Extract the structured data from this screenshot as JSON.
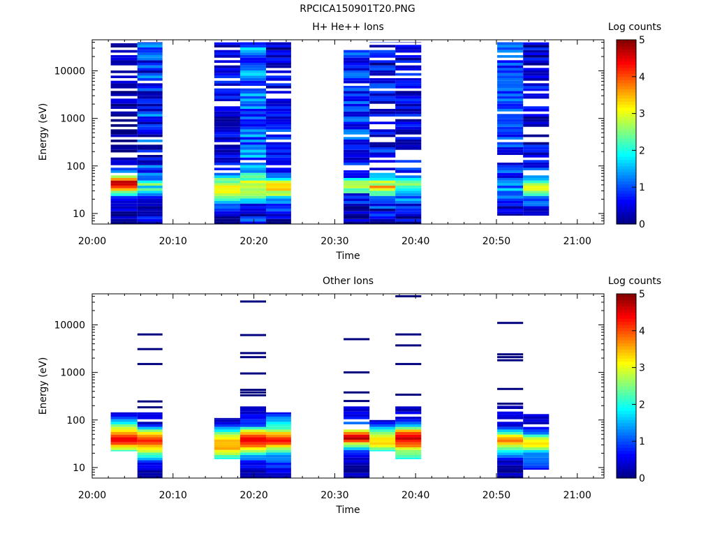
{
  "page_title": "RPCICA150901T20.PNG",
  "colors": {
    "colormap": [
      "#00007f",
      "#0000ff",
      "#007fff",
      "#00ffff",
      "#7fff7f",
      "#ffff00",
      "#ff7f00",
      "#ff0000",
      "#7f0000"
    ]
  },
  "chart_data": [
    {
      "type": "heatmap",
      "title": "H+ He++ Ions",
      "xlabel": "Time",
      "ylabel": "Energy (eV)",
      "x_ticks": [
        "20:00",
        "20:10",
        "20:20",
        "20:30",
        "20:40",
        "20:50",
        "21:00"
      ],
      "x_tick_minutes": [
        0,
        10,
        20,
        30,
        40,
        50,
        60
      ],
      "xlim_minutes": [
        0,
        63.3
      ],
      "y_scale": "log",
      "ylim": [
        6,
        45000
      ],
      "y_ticks": [
        10,
        100,
        1000,
        10000
      ],
      "y_tick_labels": [
        "10",
        "100",
        "1000",
        "10000"
      ],
      "colorbar": {
        "label": "Log counts",
        "range": [
          0,
          5
        ],
        "ticks": [
          "0",
          "1",
          "2",
          "3",
          "4",
          "5"
        ]
      },
      "columns": [
        {
          "t_start": 2.3,
          "t_end": 5.6,
          "e_min": 6,
          "e_max": 38000,
          "profile": [
            [
              6,
              0.2
            ],
            [
              20,
              0.5
            ],
            [
              28,
              2.5
            ],
            [
              36,
              4.2
            ],
            [
              45,
              4.5
            ],
            [
              55,
              3.5
            ],
            [
              70,
              2.0
            ],
            [
              90,
              0.5
            ],
            [
              300,
              0.2
            ],
            [
              40000,
              0.2
            ]
          ],
          "noise": 0.35,
          "gap": 0.35,
          "seed": 11
        },
        {
          "t_start": 5.6,
          "t_end": 8.7,
          "e_min": 6,
          "e_max": 40000,
          "profile": [
            [
              6,
              0.5
            ],
            [
              25,
              0.8
            ],
            [
              32,
              2.0
            ],
            [
              40,
              2.2
            ],
            [
              55,
              1.5
            ],
            [
              100,
              0.7
            ],
            [
              40000,
              0.9
            ]
          ],
          "noise": 0.7,
          "gap": 0.1,
          "seed": 23
        },
        {
          "t_start": 15.1,
          "t_end": 18.3,
          "e_min": 6,
          "e_max": 40000,
          "profile": [
            [
              6,
              0.2
            ],
            [
              15,
              1.0
            ],
            [
              22,
              2.8
            ],
            [
              30,
              3.4
            ],
            [
              40,
              3.2
            ],
            [
              55,
              2.2
            ],
            [
              70,
              1.2
            ],
            [
              120,
              0.5
            ],
            [
              40000,
              0.5
            ]
          ],
          "noise": 0.45,
          "gap": 0.22,
          "seed": 37
        },
        {
          "t_start": 18.3,
          "t_end": 21.5,
          "e_min": 6,
          "e_max": 40000,
          "profile": [
            [
              6,
              0.8
            ],
            [
              15,
              0.5
            ],
            [
              22,
              2.0
            ],
            [
              30,
              2.5
            ],
            [
              42,
              2.8
            ],
            [
              55,
              2.3
            ],
            [
              80,
              1.4
            ],
            [
              200,
              1.1
            ],
            [
              40000,
              1.2
            ]
          ],
          "noise": 0.6,
          "gap": 0.05,
          "seed": 41
        },
        {
          "t_start": 21.5,
          "t_end": 24.6,
          "e_min": 6,
          "e_max": 40000,
          "profile": [
            [
              6,
              0.2
            ],
            [
              18,
              1.2
            ],
            [
              26,
              2.6
            ],
            [
              34,
              3.4
            ],
            [
              44,
              3.3
            ],
            [
              55,
              2.0
            ],
            [
              70,
              0.9
            ],
            [
              40000,
              0.4
            ]
          ],
          "noise": 0.45,
          "gap": 0.18,
          "seed": 53
        },
        {
          "t_start": 31.1,
          "t_end": 34.3,
          "e_min": 6,
          "e_max": 40000,
          "profile": [
            [
              6,
              0.3
            ],
            [
              25,
              0.6
            ],
            [
              30,
              2.6
            ],
            [
              38,
              2.6
            ],
            [
              50,
              2.1
            ],
            [
              60,
              1.0
            ],
            [
              100,
              0.8
            ],
            [
              40000,
              0.8
            ]
          ],
          "noise": 0.55,
          "gap": 0.12,
          "seed": 67
        },
        {
          "t_start": 34.3,
          "t_end": 37.5,
          "e_min": 6,
          "e_max": 40000,
          "profile": [
            [
              6,
              0.2
            ],
            [
              22,
              1.0
            ],
            [
              30,
              2.8
            ],
            [
              38,
              3.3
            ],
            [
              48,
              2.5
            ],
            [
              58,
              1.8
            ],
            [
              80,
              0.6
            ],
            [
              40000,
              0.6
            ]
          ],
          "noise": 0.6,
          "gap": 0.25,
          "seed": 71
        },
        {
          "t_start": 37.5,
          "t_end": 40.7,
          "e_min": 6,
          "e_max": 40000,
          "profile": [
            [
              6,
              0.2
            ],
            [
              18,
              0.9
            ],
            [
              28,
              1.8
            ],
            [
              38,
              2.3
            ],
            [
              48,
              2.4
            ],
            [
              60,
              1.4
            ],
            [
              90,
              0.6
            ],
            [
              40000,
              0.6
            ]
          ],
          "noise": 0.55,
          "gap": 0.2,
          "seed": 79
        },
        {
          "t_start": 50.1,
          "t_end": 53.3,
          "e_min": 9,
          "e_max": 40000,
          "profile": [
            [
              9,
              0.3
            ],
            [
              20,
              0.7
            ],
            [
              30,
              1.4
            ],
            [
              40,
              1.3
            ],
            [
              60,
              0.8
            ],
            [
              300,
              0.9
            ],
            [
              40000,
              0.9
            ]
          ],
          "noise": 0.5,
          "gap": 0.1,
          "seed": 83
        },
        {
          "t_start": 53.3,
          "t_end": 56.5,
          "e_min": 9,
          "e_max": 40000,
          "profile": [
            [
              9,
              0.6
            ],
            [
              20,
              1.0
            ],
            [
              27,
              2.5
            ],
            [
              35,
              3.2
            ],
            [
              45,
              2.6
            ],
            [
              60,
              1.5
            ],
            [
              120,
              0.5
            ],
            [
              40000,
              0.4
            ]
          ],
          "noise": 0.5,
          "gap": 0.22,
          "seed": 97
        }
      ]
    },
    {
      "type": "heatmap",
      "title": "Other Ions",
      "xlabel": "Time",
      "ylabel": "Energy (eV)",
      "x_ticks": [
        "20:00",
        "20:10",
        "20:20",
        "20:30",
        "20:40",
        "20:50",
        "21:00"
      ],
      "x_tick_minutes": [
        0,
        10,
        20,
        30,
        40,
        50,
        60
      ],
      "xlim_minutes": [
        0,
        63.3
      ],
      "y_scale": "log",
      "ylim": [
        6,
        45000
      ],
      "y_ticks": [
        10,
        100,
        1000,
        10000
      ],
      "y_tick_labels": [
        "10",
        "100",
        "1000",
        "10000"
      ],
      "colorbar": {
        "label": "Log counts",
        "range": [
          0,
          5
        ],
        "ticks": [
          "0",
          "1",
          "2",
          "3",
          "4",
          "5"
        ]
      },
      "columns": [
        {
          "t_start": 2.3,
          "t_end": 5.6,
          "e_min": 22,
          "e_max": 145,
          "profile": [
            [
              22,
              2.2
            ],
            [
              28,
              3.2
            ],
            [
              34,
              4.2
            ],
            [
              42,
              4.4
            ],
            [
              52,
              3.8
            ],
            [
              65,
              3.0
            ],
            [
              80,
              2.4
            ],
            [
              100,
              1.2
            ],
            [
              145,
              0.3
            ]
          ],
          "noise": 0.2,
          "gap": 0.0,
          "seed": 101,
          "lines": []
        },
        {
          "t_start": 5.6,
          "t_end": 8.7,
          "e_min": 6,
          "e_max": 145,
          "profile": [
            [
              6,
              0.2
            ],
            [
              12,
              0.5
            ],
            [
              17,
              2.0
            ],
            [
              22,
              2.8
            ],
            [
              28,
              3.6
            ],
            [
              36,
              4.1
            ],
            [
              46,
              3.6
            ],
            [
              58,
              2.6
            ],
            [
              80,
              0.4
            ],
            [
              145,
              0.3
            ]
          ],
          "noise": 0.2,
          "gap": 0.1,
          "seed": 103,
          "lines": [
            185,
            245,
            1500,
            3100,
            6300
          ]
        },
        {
          "t_start": 15.1,
          "t_end": 18.3,
          "e_min": 15,
          "e_max": 110,
          "profile": [
            [
              15,
              2.0
            ],
            [
              20,
              2.8
            ],
            [
              26,
              3.5
            ],
            [
              34,
              3.6
            ],
            [
              44,
              3.2
            ],
            [
              55,
              2.3
            ],
            [
              70,
              1.3
            ],
            [
              90,
              0.5
            ],
            [
              110,
              0.3
            ]
          ],
          "noise": 0.2,
          "gap": 0.05,
          "seed": 107,
          "lines": []
        },
        {
          "t_start": 18.3,
          "t_end": 21.5,
          "e_min": 6,
          "e_max": 200,
          "profile": [
            [
              6,
              0.2
            ],
            [
              12,
              0.6
            ],
            [
              18,
              1.5
            ],
            [
              24,
              3.0
            ],
            [
              32,
              4.2
            ],
            [
              42,
              4.5
            ],
            [
              52,
              3.6
            ],
            [
              65,
              2.2
            ],
            [
              80,
              0.8
            ],
            [
              200,
              0.3
            ]
          ],
          "noise": 0.2,
          "gap": 0.05,
          "seed": 109,
          "lines": [
            330,
            380,
            430,
            950,
            2100,
            2550,
            6100,
            31000
          ]
        },
        {
          "t_start": 21.5,
          "t_end": 24.6,
          "e_min": 6,
          "e_max": 145,
          "profile": [
            [
              6,
              0.3
            ],
            [
              14,
              1.0
            ],
            [
              20,
              1.8
            ],
            [
              26,
              3.0
            ],
            [
              34,
              4.2
            ],
            [
              44,
              4.0
            ],
            [
              55,
              3.0
            ],
            [
              70,
              2.0
            ],
            [
              100,
              1.5
            ],
            [
              145,
              0.3
            ]
          ],
          "noise": 0.2,
          "gap": 0.05,
          "seed": 113,
          "lines": []
        },
        {
          "t_start": 31.1,
          "t_end": 34.3,
          "e_min": 6,
          "e_max": 200,
          "profile": [
            [
              6,
              0.3
            ],
            [
              12,
              0.3
            ],
            [
              22,
              1.0
            ],
            [
              30,
              2.5
            ],
            [
              38,
              4.6
            ],
            [
              46,
              4.4
            ],
            [
              56,
              3.5
            ],
            [
              70,
              1.5
            ],
            [
              100,
              0.8
            ],
            [
              200,
              0.3
            ]
          ],
          "noise": 0.25,
          "gap": 0.25,
          "seed": 127,
          "lines": [
            250,
            380,
            1000,
            5000
          ]
        },
        {
          "t_start": 34.3,
          "t_end": 37.5,
          "e_min": 22,
          "e_max": 100,
          "profile": [
            [
              22,
              2.0
            ],
            [
              30,
              3.2
            ],
            [
              40,
              3.4
            ],
            [
              50,
              2.6
            ],
            [
              62,
              2.0
            ],
            [
              80,
              1.0
            ],
            [
              100,
              0.3
            ]
          ],
          "noise": 0.15,
          "gap": 0.0,
          "seed": 131,
          "lines": []
        },
        {
          "t_start": 37.5,
          "t_end": 40.7,
          "e_min": 15,
          "e_max": 200,
          "profile": [
            [
              15,
              2.0
            ],
            [
              22,
              2.6
            ],
            [
              30,
              3.8
            ],
            [
              40,
              4.6
            ],
            [
              50,
              4.4
            ],
            [
              60,
              3.5
            ],
            [
              75,
              1.8
            ],
            [
              100,
              0.5
            ],
            [
              200,
              0.3
            ]
          ],
          "noise": 0.2,
          "gap": 0.1,
          "seed": 137,
          "lines": [
            340,
            1500,
            3700,
            6300,
            40000
          ]
        },
        {
          "t_start": 50.1,
          "t_end": 53.3,
          "e_min": 6,
          "e_max": 200,
          "profile": [
            [
              6,
              0.2
            ],
            [
              14,
              0.3
            ],
            [
              20,
              1.5
            ],
            [
              28,
              2.8
            ],
            [
              36,
              4.0
            ],
            [
              44,
              3.6
            ],
            [
              55,
              2.0
            ],
            [
              70,
              0.6
            ],
            [
              200,
              0.3
            ]
          ],
          "noise": 0.2,
          "gap": 0.15,
          "seed": 139,
          "lines": [
            220,
            450,
            1800,
            2100,
            2400,
            11000
          ]
        },
        {
          "t_start": 53.3,
          "t_end": 56.5,
          "e_min": 9,
          "e_max": 140,
          "profile": [
            [
              9,
              0.6
            ],
            [
              14,
              1.2
            ],
            [
              20,
              1.4
            ],
            [
              26,
              2.8
            ],
            [
              34,
              3.4
            ],
            [
              44,
              2.6
            ],
            [
              55,
              1.0
            ],
            [
              70,
              0.4
            ],
            [
              140,
              0.3
            ]
          ],
          "noise": 0.2,
          "gap": 0.2,
          "seed": 149,
          "lines": []
        }
      ]
    }
  ]
}
